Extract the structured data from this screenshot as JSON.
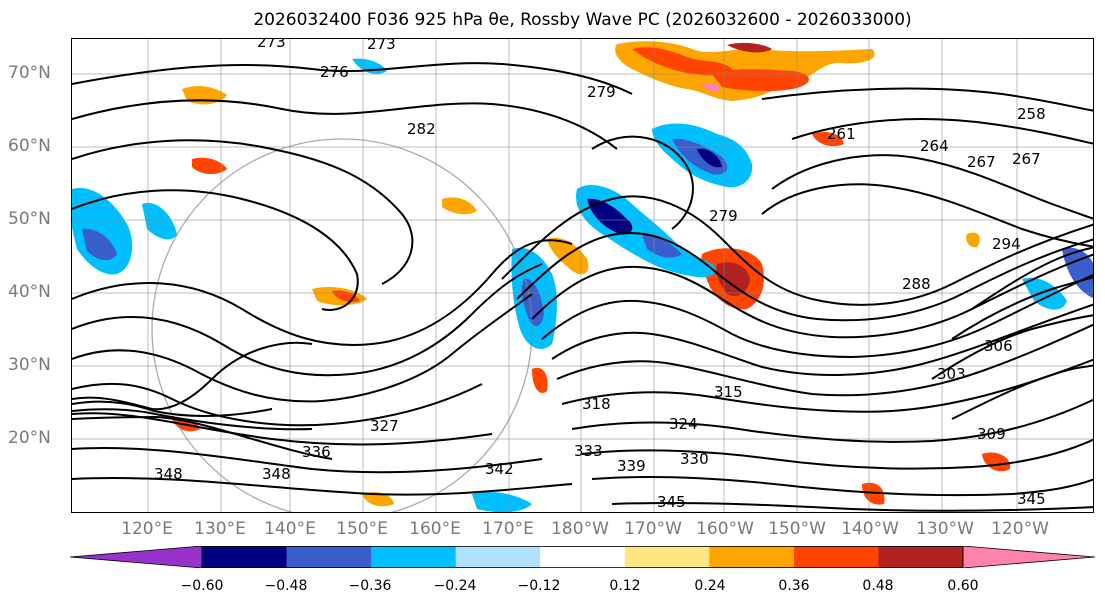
{
  "title": "2026032400 F036 925 hPa θe, Rossby Wave PC (2026032600 - 2026033000)",
  "lat_labels": [
    "70°N",
    "60°N",
    "50°N",
    "40°N",
    "30°N",
    "20°N"
  ],
  "lon_labels": [
    "120°E",
    "130°E",
    "140°E",
    "150°E",
    "160°E",
    "170°E",
    "180°W",
    "170°W",
    "160°W",
    "150°W",
    "140°W",
    "130°W",
    "120°W"
  ],
  "contour_labels": [
    "273",
    "273",
    "276",
    "279",
    "282",
    "261",
    "267",
    "267",
    "258",
    "264",
    "279",
    "288",
    "294",
    "303",
    "306",
    "309",
    "315",
    "318",
    "324",
    "327",
    "330",
    "333",
    "336",
    "339",
    "342",
    "345",
    "345",
    "348",
    "348"
  ],
  "colorbar": {
    "ticks": [
      "−0.60",
      "−0.48",
      "−0.36",
      "−0.24",
      "−0.12",
      "0.12",
      "0.24",
      "0.36",
      "0.48",
      "0.60"
    ],
    "colors": [
      "#9932cc",
      "#000080",
      "#3a5fcd",
      "#00bfff",
      "#b0e2ff",
      "#ffffff",
      "#ffe680",
      "#ffa500",
      "#ff4500",
      "#b22222",
      "#ff82ab"
    ]
  }
}
